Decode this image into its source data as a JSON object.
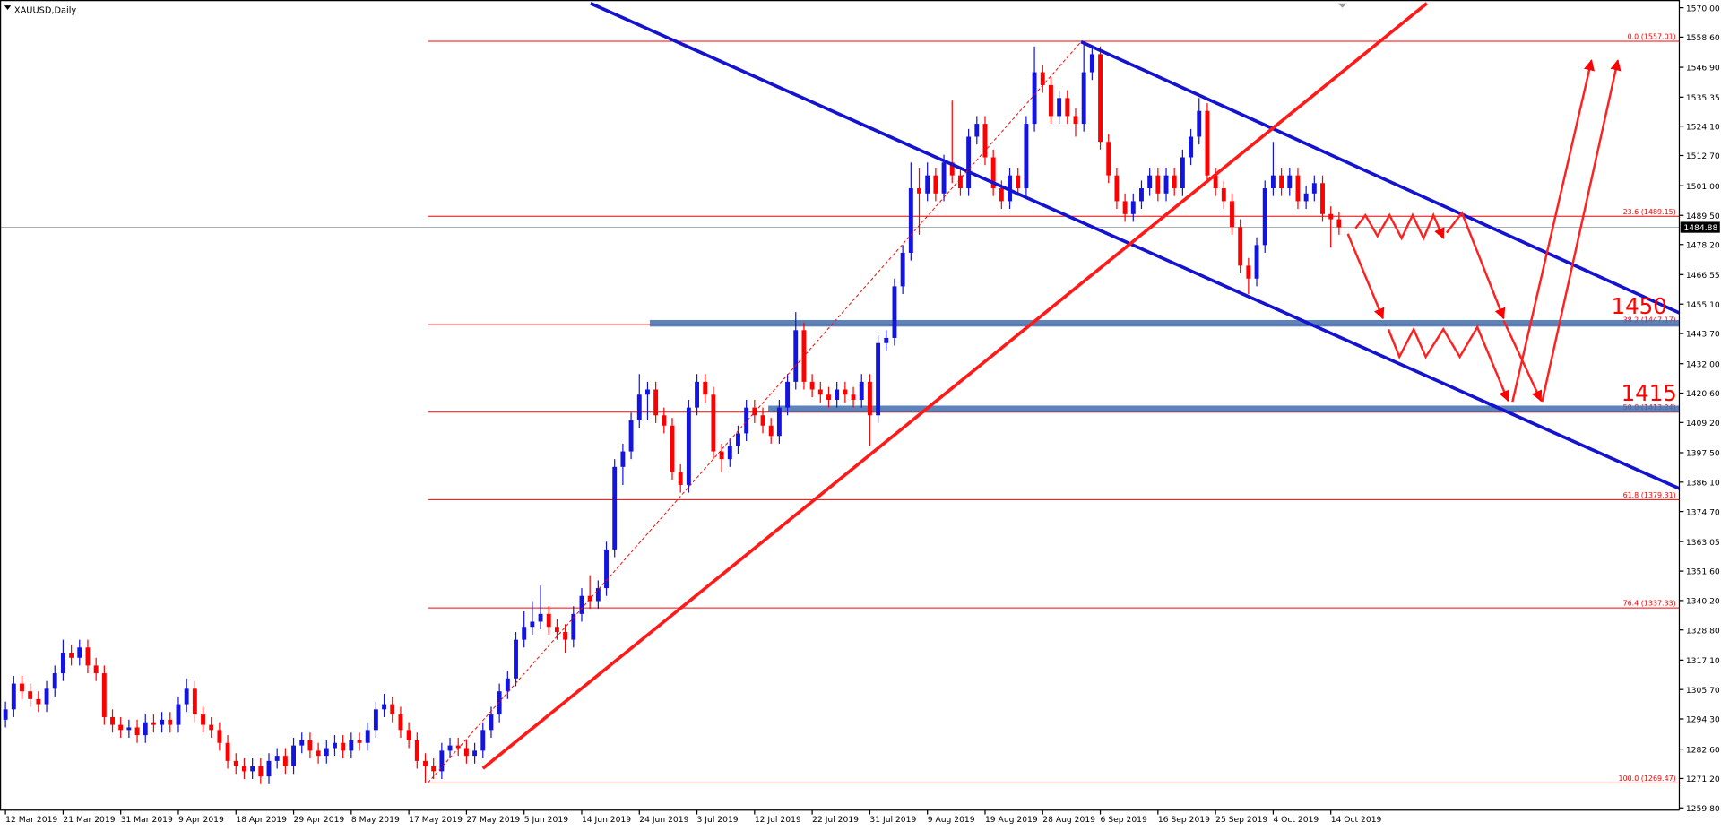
{
  "chart_data": {
    "type": "candlestick",
    "title": "XAUUSD,Daily",
    "up_color": "#1414e0",
    "down_color": "#ff0000",
    "ylim": [
      1259.8,
      1570
    ],
    "yticks": [
      {
        "value": 1570,
        "label": "1570.00"
      },
      {
        "value": 1558.6,
        "label": "1558.60"
      },
      {
        "value": 1546.9,
        "label": "1546.90"
      },
      {
        "value": 1535.35,
        "label": "1535.35"
      },
      {
        "value": 1524.1,
        "label": "1524.10"
      },
      {
        "value": 1512.7,
        "label": "1512.70"
      },
      {
        "value": 1501,
        "label": "1501.00"
      },
      {
        "value": 1489.5,
        "label": "1489.50"
      },
      {
        "value": 1478.2,
        "label": "1478.20"
      },
      {
        "value": 1466.55,
        "label": "1466.55"
      },
      {
        "value": 1455.1,
        "label": "1455.10"
      },
      {
        "value": 1443.7,
        "label": "1443.70"
      },
      {
        "value": 1432,
        "label": "1432.00"
      },
      {
        "value": 1420.6,
        "label": "1420.60"
      },
      {
        "value": 1409.2,
        "label": "1409.20"
      },
      {
        "value": 1397.5,
        "label": "1397.50"
      },
      {
        "value": 1386.1,
        "label": "1386.10"
      },
      {
        "value": 1374.7,
        "label": "1374.70"
      },
      {
        "value": 1363.05,
        "label": "1363.05"
      },
      {
        "value": 1351.6,
        "label": "1351.60"
      },
      {
        "value": 1340.2,
        "label": "1340.20"
      },
      {
        "value": 1328.8,
        "label": "1328.80"
      },
      {
        "value": 1317.1,
        "label": "1317.10"
      },
      {
        "value": 1305.7,
        "label": "1305.70"
      },
      {
        "value": 1294.3,
        "label": "1294.30"
      },
      {
        "value": 1282.6,
        "label": "1282.60"
      },
      {
        "value": 1271.2,
        "label": "1271.20"
      },
      {
        "value": 1259.8,
        "label": "1259.80"
      }
    ],
    "current_price": {
      "value": 1484.88,
      "label": "1484.88"
    },
    "fib_levels": [
      {
        "text": "0.0  (1557.01)",
        "value": 1557.01
      },
      {
        "text": "23.6  (1489.15)",
        "value": 1489.15
      },
      {
        "text": "38.2  (1447.17)",
        "value": 1447.17
      },
      {
        "text": "50.0  (1413.24)",
        "value": 1413.24
      },
      {
        "text": "61.8  (1379.31)",
        "value": 1379.31
      },
      {
        "text": "76.4  (1337.33)",
        "value": 1337.33
      },
      {
        "text": "100.0  (1269.47)",
        "value": 1269.47
      }
    ],
    "annotations": [
      "1450",
      "1415"
    ],
    "categories": [
      "12 Mar 2019",
      null,
      null,
      null,
      null,
      null,
      null,
      "21 Mar 2019",
      null,
      null,
      null,
      null,
      null,
      null,
      "31 Mar 2019",
      null,
      null,
      null,
      null,
      null,
      null,
      "9 Apr 2019",
      null,
      null,
      null,
      null,
      null,
      null,
      "18 Apr 2019",
      null,
      null,
      null,
      null,
      null,
      null,
      "29 Apr 2019",
      null,
      null,
      null,
      null,
      null,
      null,
      "8 May 2019",
      null,
      null,
      null,
      null,
      null,
      null,
      "17 May 2019",
      null,
      null,
      null,
      null,
      null,
      null,
      "27 May 2019",
      null,
      null,
      null,
      null,
      null,
      null,
      "5 Jun 2019",
      null,
      null,
      null,
      null,
      null,
      null,
      "14 Jun 2019",
      null,
      null,
      null,
      null,
      null,
      null,
      "24 Jun 2019",
      null,
      null,
      null,
      null,
      null,
      null,
      "3 Jul 2019",
      null,
      null,
      null,
      null,
      null,
      null,
      "12 Jul 2019",
      null,
      null,
      null,
      null,
      null,
      null,
      "22 Jul 2019",
      null,
      null,
      null,
      null,
      null,
      null,
      "31 Jul 2019",
      null,
      null,
      null,
      null,
      null,
      null,
      "9 Aug 2019",
      null,
      null,
      null,
      null,
      null,
      null,
      "19 Aug 2019",
      null,
      null,
      null,
      null,
      null,
      null,
      "28 Aug 2019",
      null,
      null,
      null,
      null,
      null,
      null,
      "6 Sep 2019",
      null,
      null,
      null,
      null,
      null,
      null,
      "16 Sep 2019",
      null,
      null,
      null,
      null,
      null,
      null,
      "25 Sep 2019",
      null,
      null,
      null,
      null,
      null,
      null,
      "4 Oct 2019",
      null,
      null,
      null,
      null,
      null,
      null,
      "14 Oct 2019",
      null
    ],
    "candles": [
      [
        1294,
        1301,
        1291,
        1298
      ],
      [
        1298,
        1311,
        1295,
        1308
      ],
      [
        1308,
        1311,
        1302,
        1305
      ],
      [
        1305,
        1308,
        1299,
        1302
      ],
      [
        1302,
        1305,
        1297,
        1300
      ],
      [
        1300,
        1309,
        1297,
        1306
      ],
      [
        1306,
        1315,
        1303,
        1312
      ],
      [
        1312,
        1325,
        1309,
        1320
      ],
      [
        1320,
        1323,
        1315,
        1318
      ],
      [
        1318,
        1325,
        1315,
        1322
      ],
      [
        1322,
        1325,
        1312,
        1315
      ],
      [
        1315,
        1318,
        1309,
        1312
      ],
      [
        1312,
        1315,
        1292,
        1295
      ],
      [
        1295,
        1298,
        1289,
        1292
      ],
      [
        1292,
        1295,
        1287,
        1290
      ],
      [
        1290,
        1294,
        1287,
        1291
      ],
      [
        1291,
        1294,
        1285,
        1288
      ],
      [
        1288,
        1296,
        1285,
        1293
      ],
      [
        1293,
        1296,
        1289,
        1292
      ],
      [
        1292,
        1297,
        1289,
        1294
      ],
      [
        1294,
        1297,
        1289,
        1292
      ],
      [
        1292,
        1303,
        1289,
        1300
      ],
      [
        1300,
        1310,
        1297,
        1306
      ],
      [
        1306,
        1309,
        1293,
        1296
      ],
      [
        1296,
        1299,
        1289,
        1292
      ],
      [
        1292,
        1295,
        1287,
        1290
      ],
      [
        1290,
        1293,
        1282,
        1285
      ],
      [
        1285,
        1288,
        1275,
        1278
      ],
      [
        1278,
        1281,
        1273,
        1276
      ],
      [
        1276,
        1279,
        1271,
        1274
      ],
      [
        1274,
        1279,
        1271,
        1276
      ],
      [
        1276,
        1279,
        1269,
        1272
      ],
      [
        1272,
        1281,
        1269,
        1278
      ],
      [
        1278,
        1283,
        1275,
        1280
      ],
      [
        1280,
        1283,
        1273,
        1276
      ],
      [
        1276,
        1287,
        1273,
        1284
      ],
      [
        1284,
        1289,
        1281,
        1286
      ],
      [
        1286,
        1289,
        1279,
        1282
      ],
      [
        1282,
        1285,
        1277,
        1280
      ],
      [
        1280,
        1286,
        1277,
        1283
      ],
      [
        1283,
        1288,
        1280,
        1285
      ],
      [
        1285,
        1288,
        1279,
        1282
      ],
      [
        1282,
        1289,
        1279,
        1286
      ],
      [
        1286,
        1289,
        1282,
        1285
      ],
      [
        1285,
        1293,
        1282,
        1290
      ],
      [
        1290,
        1301,
        1287,
        1298
      ],
      [
        1298,
        1304,
        1295,
        1300
      ],
      [
        1300,
        1303,
        1293,
        1296
      ],
      [
        1296,
        1299,
        1287,
        1290
      ],
      [
        1290,
        1293,
        1283,
        1286
      ],
      [
        1286,
        1289,
        1275,
        1278
      ],
      [
        1278,
        1281,
        1269.47,
        1276
      ],
      [
        1276,
        1279,
        1271,
        1274
      ],
      [
        1274,
        1285,
        1271,
        1282
      ],
      [
        1282,
        1287,
        1279,
        1284
      ],
      [
        1284,
        1287,
        1280,
        1283
      ],
      [
        1283,
        1286,
        1277,
        1280
      ],
      [
        1280,
        1285,
        1277,
        1282
      ],
      [
        1282,
        1293,
        1279,
        1290
      ],
      [
        1290,
        1299,
        1287,
        1296
      ],
      [
        1296,
        1308,
        1293,
        1305
      ],
      [
        1305,
        1313,
        1302,
        1310
      ],
      [
        1310,
        1328,
        1307,
        1325
      ],
      [
        1325,
        1336,
        1322,
        1330
      ],
      [
        1330,
        1340,
        1327,
        1332
      ],
      [
        1332,
        1346,
        1329,
        1335
      ],
      [
        1335,
        1338,
        1327,
        1330
      ],
      [
        1330,
        1333,
        1325,
        1328
      ],
      [
        1328,
        1331,
        1320,
        1325
      ],
      [
        1325,
        1338,
        1322,
        1335
      ],
      [
        1335,
        1345,
        1332,
        1342
      ],
      [
        1342,
        1350,
        1337,
        1340
      ],
      [
        1340,
        1348,
        1337,
        1345
      ],
      [
        1345,
        1363,
        1342,
        1360
      ],
      [
        1360,
        1395,
        1357,
        1392
      ],
      [
        1392,
        1401,
        1385,
        1398
      ],
      [
        1398,
        1413,
        1395,
        1410
      ],
      [
        1410,
        1428,
        1407,
        1420
      ],
      [
        1420,
        1425,
        1410,
        1422
      ],
      [
        1422,
        1425,
        1409,
        1412
      ],
      [
        1412,
        1415,
        1405,
        1408
      ],
      [
        1408,
        1411,
        1387,
        1390
      ],
      [
        1390,
        1393,
        1382,
        1385
      ],
      [
        1385,
        1418,
        1382,
        1415
      ],
      [
        1415,
        1428,
        1412,
        1425
      ],
      [
        1425,
        1428,
        1417,
        1420
      ],
      [
        1420,
        1423,
        1395,
        1398
      ],
      [
        1398,
        1401,
        1390,
        1395
      ],
      [
        1395,
        1403,
        1392,
        1400
      ],
      [
        1400,
        1408,
        1397,
        1405
      ],
      [
        1405,
        1418,
        1402,
        1415
      ],
      [
        1415,
        1418,
        1409,
        1412
      ],
      [
        1412,
        1415,
        1405,
        1408
      ],
      [
        1408,
        1411,
        1401,
        1404
      ],
      [
        1404,
        1418,
        1401,
        1415
      ],
      [
        1415,
        1428,
        1412,
        1425
      ],
      [
        1425,
        1452,
        1422,
        1445
      ],
      [
        1445,
        1448,
        1422,
        1425
      ],
      [
        1425,
        1428,
        1419,
        1422
      ],
      [
        1422,
        1425,
        1417,
        1420
      ],
      [
        1420,
        1423,
        1415,
        1418
      ],
      [
        1418,
        1425,
        1415,
        1422
      ],
      [
        1422,
        1425,
        1417,
        1420
      ],
      [
        1420,
        1423,
        1415,
        1418
      ],
      [
        1418,
        1428,
        1415,
        1425
      ],
      [
        1425,
        1428,
        1400,
        1412
      ],
      [
        1412,
        1443,
        1409,
        1440
      ],
      [
        1440,
        1445,
        1437,
        1442
      ],
      [
        1442,
        1465,
        1439,
        1462
      ],
      [
        1462,
        1478,
        1459,
        1475
      ],
      [
        1475,
        1510,
        1472,
        1500
      ],
      [
        1500,
        1508,
        1482,
        1498
      ],
      [
        1498,
        1510,
        1495,
        1505
      ],
      [
        1505,
        1508,
        1495,
        1498
      ],
      [
        1498,
        1513,
        1495,
        1510
      ],
      [
        1510,
        1534,
        1502,
        1505
      ],
      [
        1505,
        1508,
        1497,
        1500
      ],
      [
        1500,
        1523,
        1497,
        1520
      ],
      [
        1520,
        1528,
        1517,
        1525
      ],
      [
        1525,
        1528,
        1509,
        1512
      ],
      [
        1512,
        1515,
        1497,
        1500
      ],
      [
        1500,
        1503,
        1492,
        1495
      ],
      [
        1495,
        1508,
        1492,
        1505
      ],
      [
        1505,
        1508,
        1497,
        1500
      ],
      [
        1500,
        1528,
        1497,
        1525
      ],
      [
        1525,
        1555,
        1522,
        1545
      ],
      [
        1545,
        1548,
        1537,
        1540
      ],
      [
        1540,
        1543,
        1525,
        1528
      ],
      [
        1528,
        1538,
        1525,
        1535
      ],
      [
        1535,
        1538,
        1525,
        1528
      ],
      [
        1528,
        1531,
        1520,
        1525
      ],
      [
        1525,
        1557.01,
        1522,
        1545
      ],
      [
        1545,
        1555,
        1542,
        1552
      ],
      [
        1552,
        1555,
        1515,
        1518
      ],
      [
        1518,
        1521,
        1502,
        1505
      ],
      [
        1505,
        1508,
        1492,
        1495
      ],
      [
        1495,
        1498,
        1487,
        1490
      ],
      [
        1490,
        1498,
        1487,
        1495
      ],
      [
        1495,
        1503,
        1492,
        1500
      ],
      [
        1500,
        1508,
        1497,
        1505
      ],
      [
        1505,
        1508,
        1495,
        1498
      ],
      [
        1498,
        1508,
        1495,
        1505
      ],
      [
        1505,
        1508,
        1497,
        1500
      ],
      [
        1500,
        1515,
        1497,
        1512
      ],
      [
        1512,
        1523,
        1509,
        1520
      ],
      [
        1520,
        1535,
        1517,
        1530
      ],
      [
        1530,
        1533,
        1502,
        1505
      ],
      [
        1505,
        1508,
        1497,
        1500
      ],
      [
        1500,
        1503,
        1492,
        1495
      ],
      [
        1495,
        1498,
        1482,
        1485
      ],
      [
        1485,
        1488,
        1467,
        1470
      ],
      [
        1470,
        1473,
        1459,
        1465
      ],
      [
        1465,
        1481,
        1462,
        1478
      ],
      [
        1478,
        1503,
        1475,
        1500
      ],
      [
        1500,
        1518,
        1497,
        1505
      ],
      [
        1505,
        1508,
        1497,
        1500
      ],
      [
        1500,
        1508,
        1497,
        1505
      ],
      [
        1505,
        1508,
        1492,
        1495
      ],
      [
        1495,
        1501,
        1492,
        1498
      ],
      [
        1498,
        1505,
        1495,
        1502
      ],
      [
        1502,
        1505,
        1487,
        1490
      ],
      [
        1490,
        1493,
        1477,
        1488
      ],
      [
        1488,
        1491,
        1482,
        1484.88
      ]
    ]
  }
}
